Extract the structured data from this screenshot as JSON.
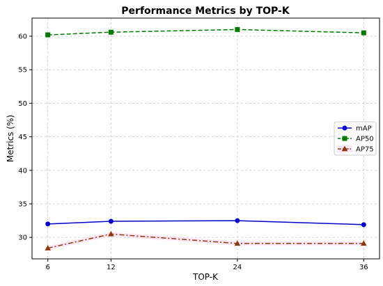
{
  "chart_data": {
    "type": "line",
    "title": "Performance Metrics by TOP-K",
    "xlabel": "TOP-K",
    "ylabel": "Metrics (%)",
    "x": [
      6,
      12,
      24,
      36
    ],
    "x_ticks": [
      "6",
      "12",
      "24",
      "36"
    ],
    "xlim": [
      4.5,
      37.5
    ],
    "ylim": [
      26.8,
      62.7
    ],
    "y_ticks": [
      "30",
      "35",
      "40",
      "45",
      "50",
      "55",
      "60"
    ],
    "grid": true,
    "legend_position": "center-right",
    "series": [
      {
        "name": "mAP",
        "values": [
          32.0,
          32.4,
          32.5,
          31.9
        ],
        "color": "#0000cc",
        "marker": "circle",
        "linestyle": "solid"
      },
      {
        "name": "AP50",
        "values": [
          60.2,
          60.6,
          61.0,
          60.5
        ],
        "color": "#007a00",
        "marker": "square",
        "linestyle": "dashed"
      },
      {
        "name": "AP75",
        "values": [
          28.4,
          30.5,
          29.1,
          29.1
        ],
        "color": "#8b3a0f",
        "marker": "triangle",
        "linestyle": "dashdot",
        "band_color": "#ffb6e6"
      }
    ]
  }
}
